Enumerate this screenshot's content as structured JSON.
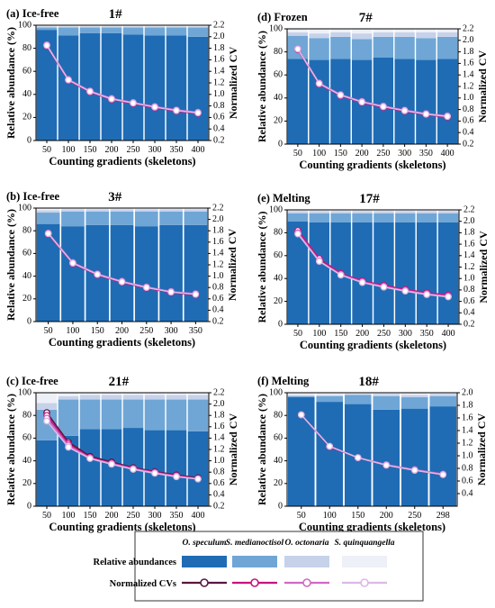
{
  "figure": {
    "series_colors": {
      "O. speculum": "#1f6cb5",
      "S. medianoctisol": "#6fa6d6",
      "O. octonaria": "#c6d2ea",
      "S. quinquangella": "#eef0f8"
    },
    "cv_colors": {
      "O. speculum": "#5a1840",
      "S. medianoctisol": "#c8137e",
      "O. octonaria": "#d168c4",
      "S. quinquangella": "#dcb8e6"
    },
    "legend": {
      "row1_label": "Relative abundances",
      "row2_label": "Normalized CVs",
      "species": [
        "O. speculum",
        "S. medianoctisol",
        "O. octonaria",
        "S. quinquangella"
      ]
    }
  },
  "chart_data": [
    {
      "type": "bar",
      "label": "(a) Ice-free",
      "title": "1#",
      "xlabel": "Counting gradients (skeletons)",
      "ylabel": "Relative abundance (%)",
      "y2label": "Normalized CV",
      "ylim": [
        0,
        100
      ],
      "y2lim": [
        0.2,
        2.2
      ],
      "yticks": [
        "0",
        "20",
        "40",
        "60",
        "80",
        "100"
      ],
      "y2ticks": [
        "0.2",
        "0.4",
        "0.6",
        "0.8",
        "1.0",
        "1.2",
        "1.4",
        "1.6",
        "1.8",
        "2.0",
        "2.2"
      ],
      "categories": [
        "50",
        "100",
        "150",
        "200",
        "250",
        "300",
        "350",
        "400"
      ],
      "series": [
        {
          "name": "O. speculum",
          "values": [
            96,
            91,
            93,
            93,
            92,
            91,
            91,
            90
          ]
        },
        {
          "name": "S. medianoctisol",
          "values": [
            2,
            7,
            5,
            5,
            6,
            7,
            7,
            8
          ]
        },
        {
          "name": "O. octonaria",
          "values": [
            1,
            1,
            1,
            1,
            1,
            1,
            1,
            1
          ]
        },
        {
          "name": "S. quinquangella",
          "values": [
            1,
            1,
            1,
            1,
            1,
            1,
            1,
            1
          ]
        }
      ],
      "cv_series": [
        {
          "name": "O. speculum",
          "values": [
            1.85,
            1.25,
            1.05,
            0.92,
            0.85,
            0.78,
            0.72,
            0.68
          ]
        },
        {
          "name": "S. medianoctisol",
          "values": [
            1.84,
            1.24,
            1.04,
            0.91,
            0.84,
            0.77,
            0.71,
            0.67
          ]
        },
        {
          "name": "O. octonaria",
          "values": [
            1.86,
            1.26,
            1.06,
            0.93,
            0.86,
            0.79,
            0.73,
            0.69
          ]
        },
        {
          "name": "S. quinquangella",
          "values": [
            1.85,
            1.25,
            1.05,
            0.92,
            0.85,
            0.78,
            0.72,
            0.68
          ]
        }
      ]
    },
    {
      "type": "bar",
      "label": "(d) Frozen",
      "title": "7#",
      "xlabel": "Counting gradients (skeletons)",
      "ylabel": "Relative abundance (%)",
      "y2label": "Normalized CV",
      "ylim": [
        0,
        100
      ],
      "y2lim": [
        0.2,
        2.2
      ],
      "yticks": [
        "0",
        "20",
        "40",
        "60",
        "80",
        "100"
      ],
      "y2ticks": [
        "0.2",
        "0.4",
        "0.6",
        "0.8",
        "1.0",
        "1.2",
        "1.4",
        "1.6",
        "1.8",
        "2.0",
        "2.2"
      ],
      "categories": [
        "50",
        "100",
        "150",
        "200",
        "250",
        "300",
        "350",
        "400"
      ],
      "series": [
        {
          "name": "O. speculum",
          "values": [
            74,
            73,
            74,
            73,
            75,
            74,
            73,
            74
          ]
        },
        {
          "name": "S. medianoctisol",
          "values": [
            20,
            19,
            19,
            18,
            18,
            19,
            19,
            19
          ]
        },
        {
          "name": "O. octonaria",
          "values": [
            3,
            4,
            4,
            5,
            4,
            4,
            5,
            4
          ]
        },
        {
          "name": "S. quinquangella",
          "values": [
            3,
            4,
            3,
            4,
            3,
            3,
            3,
            3
          ]
        }
      ],
      "cv_series": [
        {
          "name": "O. speculum",
          "values": [
            1.85,
            1.25,
            1.05,
            0.93,
            0.85,
            0.78,
            0.72,
            0.68
          ]
        },
        {
          "name": "S. medianoctisol",
          "values": [
            1.84,
            1.24,
            1.04,
            0.92,
            0.84,
            0.77,
            0.71,
            0.67
          ]
        },
        {
          "name": "O. octonaria",
          "values": [
            1.86,
            1.26,
            1.06,
            0.94,
            0.86,
            0.79,
            0.73,
            0.69
          ]
        },
        {
          "name": "S. quinquangella",
          "values": [
            1.85,
            1.25,
            1.05,
            0.93,
            0.85,
            0.78,
            0.72,
            0.68
          ]
        }
      ]
    },
    {
      "type": "bar",
      "label": "(b) Ice-free",
      "title": "3#",
      "xlabel": "Counting gradients (skeletons)",
      "ylabel": "Relative abundance (%)",
      "y2label": "Normalized CV",
      "ylim": [
        0,
        100
      ],
      "y2lim": [
        0.2,
        2.2
      ],
      "yticks": [
        "0",
        "20",
        "40",
        "60",
        "80",
        "100"
      ],
      "y2ticks": [
        "0.2",
        "0.4",
        "0.6",
        "0.8",
        "1.0",
        "1.2",
        "1.4",
        "1.6",
        "1.8",
        "2.0",
        "2.2"
      ],
      "categories": [
        "50",
        "100",
        "150",
        "200",
        "250",
        "300",
        "350"
      ],
      "series": [
        {
          "name": "O. speculum",
          "values": [
            86,
            84,
            85,
            85,
            84,
            85,
            85
          ]
        },
        {
          "name": "S. medianoctisol",
          "values": [
            10,
            13,
            12,
            12,
            13,
            12,
            12
          ]
        },
        {
          "name": "O. octonaria",
          "values": [
            2,
            2,
            2,
            2,
            2,
            2,
            2
          ]
        },
        {
          "name": "S. quinquangella",
          "values": [
            2,
            1,
            1,
            1,
            1,
            1,
            1
          ]
        }
      ],
      "cv_series": [
        {
          "name": "O. speculum",
          "values": [
            1.75,
            1.23,
            1.03,
            0.9,
            0.8,
            0.72,
            0.68
          ]
        },
        {
          "name": "S. medianoctisol",
          "values": [
            1.74,
            1.22,
            1.02,
            0.89,
            0.79,
            0.71,
            0.67
          ]
        },
        {
          "name": "O. octonaria",
          "values": [
            1.76,
            1.24,
            1.04,
            0.91,
            0.81,
            0.73,
            0.69
          ]
        },
        {
          "name": "S. quinquangella",
          "values": [
            1.75,
            1.23,
            1.03,
            0.9,
            0.8,
            0.72,
            0.68
          ]
        }
      ]
    },
    {
      "type": "bar",
      "label": "(e) Melting",
      "title": "17#",
      "xlabel": "Counting gradients (skeletons)",
      "ylabel": "Relative abundance (%)",
      "y2label": "Normalized CV",
      "ylim": [
        0,
        100
      ],
      "y2lim": [
        0.2,
        2.2
      ],
      "yticks": [
        "0",
        "20",
        "40",
        "60",
        "80",
        "100"
      ],
      "y2ticks": [
        "0.2",
        "0.4",
        "0.6",
        "0.8",
        "1.0",
        "1.2",
        "1.4",
        "1.6",
        "1.8",
        "2.0",
        "2.2"
      ],
      "categories": [
        "50",
        "100",
        "150",
        "200",
        "250",
        "300",
        "350",
        "400"
      ],
      "series": [
        {
          "name": "O. speculum",
          "values": [
            90,
            89,
            89,
            89,
            89,
            89,
            89,
            89
          ]
        },
        {
          "name": "S. medianoctisol",
          "values": [
            7,
            8,
            8,
            8,
            8,
            8,
            8,
            8
          ]
        },
        {
          "name": "O. octonaria",
          "values": [
            2,
            2,
            2,
            2,
            2,
            2,
            2,
            2
          ]
        },
        {
          "name": "S. quinquangella",
          "values": [
            1,
            1,
            1,
            1,
            1,
            1,
            1,
            1
          ]
        }
      ],
      "cv_series": [
        {
          "name": "O. speculum",
          "values": [
            1.82,
            1.33,
            1.08,
            0.95,
            0.87,
            0.8,
            0.74,
            0.7
          ]
        },
        {
          "name": "S. medianoctisol",
          "values": [
            1.84,
            1.35,
            1.09,
            0.96,
            0.88,
            0.81,
            0.75,
            0.71
          ]
        },
        {
          "name": "O. octonaria",
          "values": [
            1.8,
            1.31,
            1.07,
            0.94,
            0.86,
            0.79,
            0.73,
            0.69
          ]
        },
        {
          "name": "S. quinquangella",
          "values": [
            1.78,
            1.3,
            1.06,
            0.93,
            0.85,
            0.78,
            0.72,
            0.68
          ]
        }
      ]
    },
    {
      "type": "bar",
      "label": "(c) Ice-free",
      "title": "21#",
      "xlabel": "Counting gradients (skeletons)",
      "ylabel": "Relative abundance (%)",
      "y2label": "Normalized CV",
      "ylim": [
        0,
        100
      ],
      "y2lim": [
        0.2,
        2.2
      ],
      "yticks": [
        "0",
        "20",
        "40",
        "60",
        "80",
        "100"
      ],
      "y2ticks": [
        "0.2",
        "0.4",
        "0.6",
        "0.8",
        "1.0",
        "1.2",
        "1.4",
        "1.6",
        "1.8",
        "2.0",
        "2.2"
      ],
      "categories": [
        "50",
        "100",
        "150",
        "200",
        "250",
        "300",
        "350",
        "400"
      ],
      "series": [
        {
          "name": "O. speculum",
          "values": [
            58,
            62,
            68,
            68,
            69,
            67,
            67,
            66
          ]
        },
        {
          "name": "S. medianoctisol",
          "values": [
            27,
            32,
            26,
            26,
            25,
            27,
            27,
            28
          ]
        },
        {
          "name": "O. octonaria",
          "values": [
            6,
            3,
            4,
            4,
            4,
            4,
            4,
            4
          ]
        },
        {
          "name": "S. quinquangella",
          "values": [
            9,
            3,
            2,
            2,
            2,
            2,
            2,
            2
          ]
        }
      ],
      "cv_series": [
        {
          "name": "O. speculum",
          "values": [
            1.85,
            1.33,
            1.08,
            0.98,
            0.88,
            0.81,
            0.75,
            0.7
          ]
        },
        {
          "name": "S. medianoctisol",
          "values": [
            1.8,
            1.3,
            1.06,
            0.96,
            0.87,
            0.8,
            0.74,
            0.69
          ]
        },
        {
          "name": "O. octonaria",
          "values": [
            1.75,
            1.27,
            1.05,
            0.95,
            0.86,
            0.79,
            0.73,
            0.68
          ]
        },
        {
          "name": "S. quinquangella",
          "values": [
            1.7,
            1.24,
            1.04,
            0.94,
            0.85,
            0.78,
            0.72,
            0.68
          ]
        }
      ]
    },
    {
      "type": "bar",
      "label": "(f) Melting",
      "title": "18#",
      "xlabel": "Counting gradients (skeletons)",
      "ylabel": "Relative abundance (%)",
      "y2label": "Normalized CV",
      "ylim": [
        0,
        100
      ],
      "y2lim": [
        0.2,
        2.0
      ],
      "yticks": [
        "0",
        "20",
        "40",
        "60",
        "80",
        "100"
      ],
      "y2ticks": [
        "0.4",
        "0.6",
        "0.8",
        "1.0",
        "1.2",
        "1.4",
        "1.6",
        "1.8",
        "2.0"
      ],
      "categories": [
        "50",
        "100",
        "150",
        "200",
        "250",
        "298"
      ],
      "series": [
        {
          "name": "O. speculum",
          "values": [
            96,
            92,
            90,
            85,
            86,
            88
          ]
        },
        {
          "name": "S. medianoctisol",
          "values": [
            1,
            5,
            8,
            12,
            10,
            9
          ]
        },
        {
          "name": "O. octonaria",
          "values": [
            1,
            1,
            1,
            2,
            2,
            2
          ]
        },
        {
          "name": "S. quinquangella",
          "values": [
            2,
            2,
            1,
            1,
            2,
            1
          ]
        }
      ],
      "cv_series": [
        {
          "name": "O. speculum",
          "values": [
            1.65,
            1.15,
            0.97,
            0.85,
            0.77,
            0.7
          ]
        },
        {
          "name": "S. medianoctisol",
          "values": [
            1.65,
            1.14,
            0.97,
            0.85,
            0.77,
            0.7
          ]
        },
        {
          "name": "O. octonaria",
          "values": [
            1.65,
            1.15,
            0.97,
            0.86,
            0.78,
            0.71
          ]
        },
        {
          "name": "S. quinquangella",
          "values": [
            1.65,
            1.15,
            0.97,
            0.85,
            0.77,
            0.7
          ]
        }
      ]
    }
  ]
}
